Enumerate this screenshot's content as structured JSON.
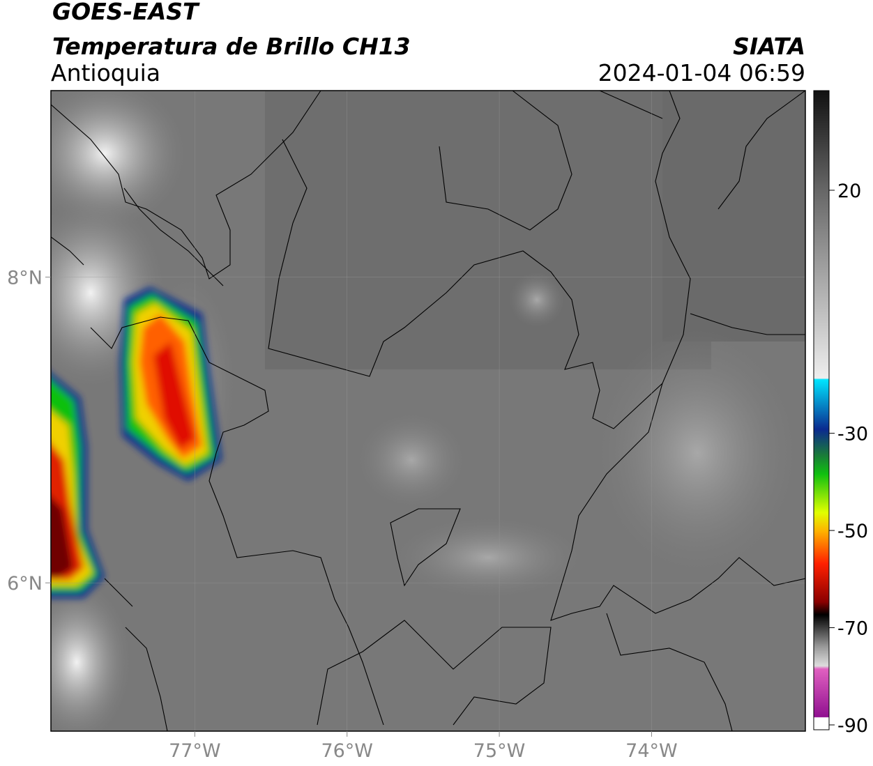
{
  "header": {
    "title": "GOES-EAST",
    "subtitle": "Temperatura de Brillo CH13",
    "region": "Antioquia",
    "source": "SIATA",
    "datetime": "2024-01-04 06:59"
  },
  "map": {
    "xlim": [
      -77.945,
      -72.99
    ],
    "ylim": [
      5.03,
      9.22
    ],
    "xticks": [
      {
        "value": -77,
        "label": "77°W"
      },
      {
        "value": -76,
        "label": "76°W"
      },
      {
        "value": -75,
        "label": "75°W"
      },
      {
        "value": -74,
        "label": "74°W"
      }
    ],
    "yticks": [
      {
        "value": 6,
        "label": "6°N"
      },
      {
        "value": 8,
        "label": "8°N"
      }
    ]
  },
  "colorbar": {
    "lim": [
      -91,
      40.5
    ],
    "ticks": [
      -90,
      -70,
      -50,
      -30,
      20
    ]
  }
}
